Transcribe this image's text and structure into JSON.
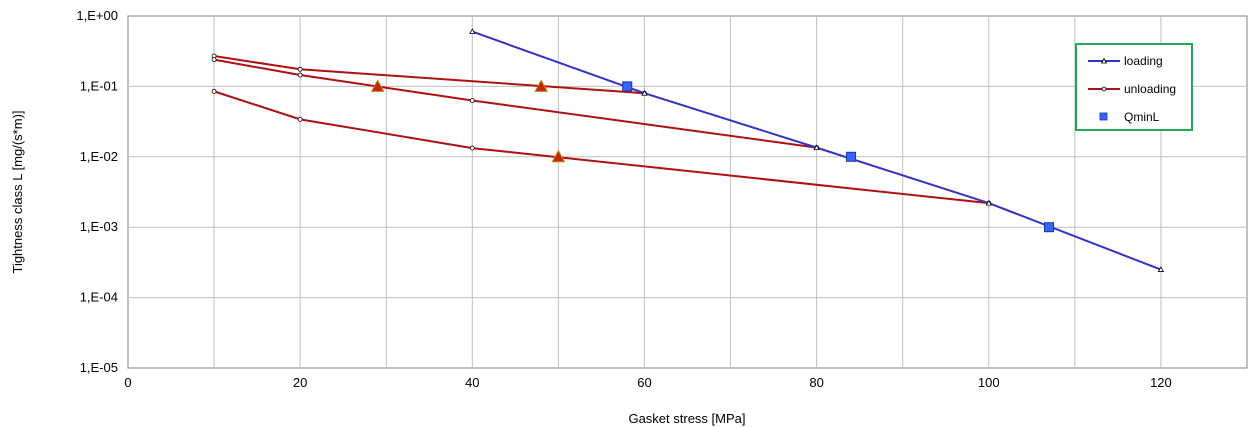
{
  "chart_data": {
    "type": "line",
    "xlabel": "Gasket stress [MPa]",
    "ylabel": "Tightness class L [mg/(s*m)]",
    "xlim": [
      0,
      130
    ],
    "ylim": [
      1e-05,
      1
    ],
    "yscale": "log",
    "grid": true,
    "legend_position": "top-right",
    "xticks": [
      "0",
      "20",
      "40",
      "60",
      "80",
      "100",
      "120"
    ],
    "yticks": [
      "1,E+00",
      "1,E-01",
      "1,E-02",
      "1,E-03",
      "1,E-04",
      "1,E-05"
    ],
    "colors": {
      "loading": "#3333cc",
      "unloading": "#b01010",
      "qmin": "#3366ff",
      "marker_tri": "#cc2200",
      "legend_border": "#22aa55"
    },
    "series": [
      {
        "name": "loading",
        "kind": "loading",
        "x": [
          40,
          60,
          80,
          100,
          120
        ],
        "y": [
          0.6,
          0.08,
          0.0135,
          0.0022,
          0.00025
        ]
      },
      {
        "name": "unloading",
        "kind": "unloading",
        "x": [
          10,
          20,
          60
        ],
        "y": [
          0.27,
          0.175,
          0.08
        ]
      },
      {
        "name": "",
        "kind": "unloading",
        "x": [
          10,
          20,
          40,
          80
        ],
        "y": [
          0.24,
          0.145,
          0.063,
          0.0135
        ]
      },
      {
        "name": "",
        "kind": "unloading",
        "x": [
          10,
          20,
          40,
          100
        ],
        "y": [
          0.085,
          0.034,
          0.0133,
          0.0022
        ]
      },
      {
        "name": "QminL",
        "kind": "qmin",
        "x": [
          58,
          84,
          107
        ],
        "y": [
          0.1,
          0.01,
          0.001
        ]
      },
      {
        "name": "",
        "kind": "triangle",
        "x": [
          29,
          48,
          50
        ],
        "y": [
          0.1,
          0.1,
          0.01
        ]
      }
    ]
  }
}
